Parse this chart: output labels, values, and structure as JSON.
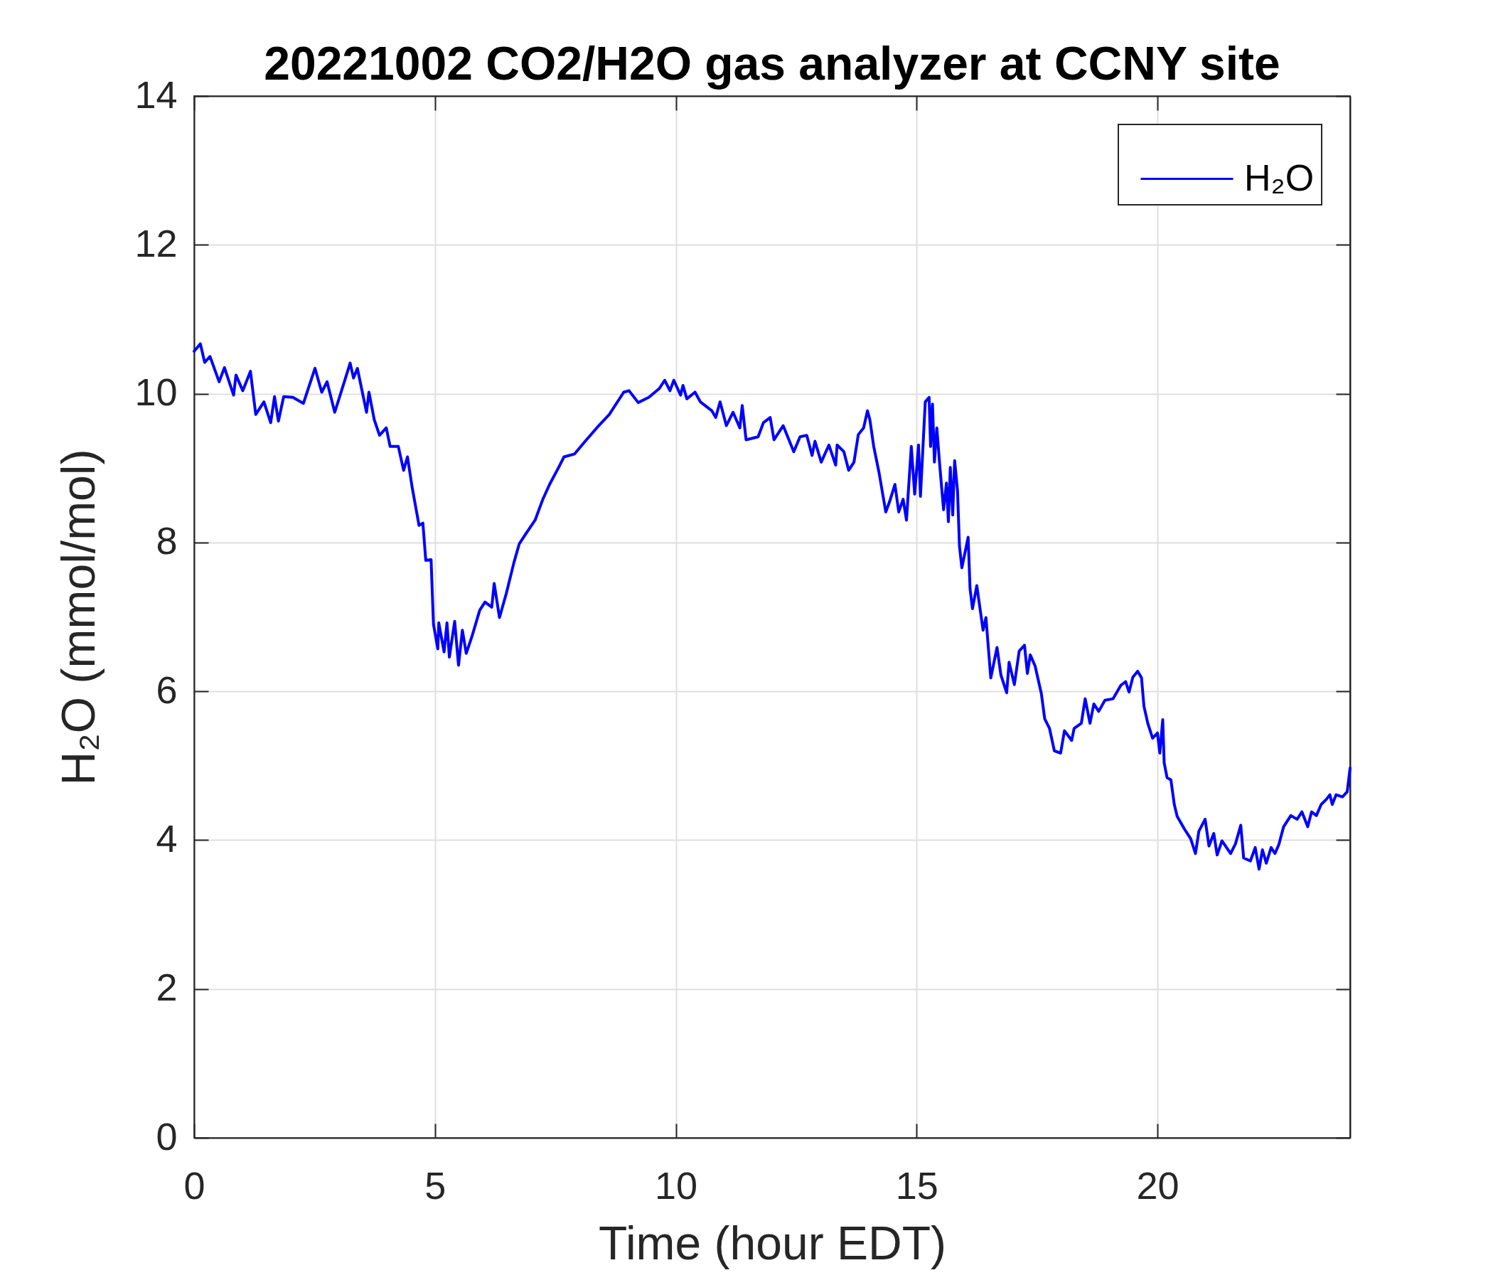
{
  "chart_data": {
    "type": "line",
    "title": "20221002 CO2/H2O gas analyzer at CCNY site",
    "xlabel": "Time (hour EDT)",
    "ylabel": "H₂O (mmol/mol)",
    "x": [
      0,
      0.13,
      0.22,
      0.33,
      0.52,
      0.63,
      0.82,
      0.87,
      1.01,
      1.17,
      1.28,
      1.45,
      1.59,
      1.67,
      1.75,
      1.86,
      2.05,
      2.27,
      2.51,
      2.65,
      2.76,
      2.92,
      3.11,
      3.24,
      3.31,
      3.39,
      3.58,
      3.63,
      3.74,
      3.85,
      3.99,
      4.07,
      4.24,
      4.35,
      4.43,
      4.53,
      4.67,
      4.75,
      4.81,
      4.92,
      4.97,
      5.06,
      5.08,
      5.19,
      5.25,
      5.3,
      5.41,
      5.49,
      5.57,
      5.65,
      5.77,
      5.93,
      6.04,
      6.18,
      6.23,
      6.34,
      6.48,
      6.64,
      6.75,
      6.89,
      7.08,
      7.24,
      7.38,
      7.57,
      7.68,
      7.9,
      8.12,
      8.36,
      8.62,
      8.92,
      9.03,
      9.22,
      9.44,
      9.66,
      9.77,
      9.88,
      9.96,
      10.1,
      10.15,
      10.23,
      10.4,
      10.51,
      10.75,
      10.83,
      10.92,
      11.05,
      11.19,
      11.33,
      11.38,
      11.46,
      11.71,
      11.82,
      11.96,
      12.04,
      12.23,
      12.45,
      12.58,
      12.72,
      12.83,
      12.89,
      13.02,
      13.18,
      13.32,
      13.35,
      13.49,
      13.59,
      13.7,
      13.79,
      13.9,
      13.98,
      14.03,
      14.11,
      14.22,
      14.36,
      14.44,
      14.55,
      14.63,
      14.72,
      14.79,
      14.89,
      14.96,
      15.04,
      15.08,
      15.18,
      15.26,
      15.29,
      15.33,
      15.37,
      15.42,
      15.48,
      15.56,
      15.62,
      15.66,
      15.7,
      15.75,
      15.79,
      15.85,
      15.89,
      15.94,
      16.07,
      16.11,
      16.16,
      16.25,
      16.38,
      16.44,
      16.54,
      16.67,
      16.75,
      16.87,
      16.92,
      17.03,
      17.13,
      17.24,
      17.3,
      17.36,
      17.46,
      17.59,
      17.66,
      17.76,
      17.86,
      17.99,
      18.07,
      18.22,
      18.27,
      18.42,
      18.5,
      18.6,
      18.68,
      18.78,
      18.91,
      19.08,
      19.24,
      19.34,
      19.41,
      19.49,
      19.59,
      19.67,
      19.72,
      19.8,
      19.9,
      20,
      20.05,
      20.11,
      20.14,
      20.2,
      20.28,
      20.35,
      20.41,
      20.56,
      20.69,
      20.79,
      20.86,
      20.99,
      21.07,
      21.17,
      21.24,
      21.34,
      21.52,
      21.62,
      21.73,
      21.79,
      21.93,
      22.03,
      22.11,
      22.18,
      22.26,
      22.36,
      22.44,
      22.52,
      22.62,
      22.77,
      22.9,
      23,
      23.12,
      23.2,
      23.3,
      23.4,
      23.51,
      23.58,
      23.63,
      23.71,
      23.84,
      23.94,
      24
    ],
    "series": [
      {
        "name": "H₂O",
        "color": "#0000ff",
        "values": [
          10.57,
          10.67,
          10.42,
          10.5,
          10.16,
          10.35,
          9.98,
          10.25,
          10.04,
          10.3,
          9.72,
          9.89,
          9.61,
          9.96,
          9.63,
          9.96,
          9.95,
          9.87,
          10.34,
          10.02,
          10.16,
          9.75,
          10.14,
          10.41,
          10.21,
          10.34,
          9.75,
          10.02,
          9.65,
          9.44,
          9.54,
          9.29,
          9.29,
          8.97,
          9.15,
          8.73,
          8.23,
          8.26,
          7.76,
          7.77,
          6.9,
          6.57,
          6.92,
          6.53,
          6.92,
          6.46,
          6.94,
          6.35,
          6.82,
          6.51,
          6.74,
          7.09,
          7.2,
          7.13,
          7.45,
          6.99,
          7.31,
          7.73,
          7.98,
          8.12,
          8.3,
          8.58,
          8.78,
          9.01,
          9.15,
          9.19,
          9.36,
          9.54,
          9.72,
          10.02,
          10.04,
          9.88,
          9.95,
          10.07,
          10.18,
          10.04,
          10.18,
          9.98,
          10.11,
          9.93,
          10.02,
          9.89,
          9.77,
          9.68,
          9.89,
          9.57,
          9.75,
          9.54,
          9.84,
          9.38,
          9.42,
          9.61,
          9.68,
          9.38,
          9.57,
          9.22,
          9.42,
          9.44,
          9.17,
          9.36,
          9.08,
          9.31,
          9.04,
          9.31,
          9.22,
          8.97,
          9.08,
          9.45,
          9.54,
          9.77,
          9.65,
          9.29,
          8.94,
          8.41,
          8.55,
          8.78,
          8.41,
          8.58,
          8.3,
          9.29,
          8.65,
          9.31,
          8.62,
          9.89,
          9.95,
          9.29,
          9.86,
          9.08,
          9.54,
          9.04,
          8.44,
          8.8,
          8.28,
          9.01,
          8.37,
          9.1,
          8.69,
          7.95,
          7.66,
          8.07,
          7.38,
          7.11,
          7.42,
          6.82,
          6.99,
          6.18,
          6.59,
          6.22,
          5.98,
          6.39,
          6.09,
          6.54,
          6.62,
          6.24,
          6.49,
          6.34,
          5.97,
          5.63,
          5.5,
          5.2,
          5.17,
          5.47,
          5.34,
          5.5,
          5.57,
          5.9,
          5.57,
          5.83,
          5.73,
          5.88,
          5.9,
          6.08,
          6.13,
          5.99,
          6.19,
          6.27,
          6.18,
          5.8,
          5.57,
          5.37,
          5.44,
          5.17,
          5.62,
          5.04,
          4.84,
          4.81,
          4.48,
          4.32,
          4.15,
          4.02,
          3.82,
          4.12,
          4.28,
          3.92,
          4.09,
          3.8,
          3.99,
          3.82,
          3.95,
          4.2,
          3.76,
          3.72,
          3.9,
          3.61,
          3.87,
          3.69,
          3.9,
          3.82,
          3.94,
          4.18,
          4.33,
          4.28,
          4.38,
          4.18,
          4.38,
          4.33,
          4.48,
          4.55,
          4.61,
          4.48,
          4.61,
          4.58,
          4.65,
          4.97
        ]
      }
    ],
    "xlim": [
      0,
      24
    ],
    "xticks": [
      0,
      5,
      10,
      15,
      20
    ],
    "ylim": [
      0,
      14
    ],
    "yticks": [
      0,
      2,
      4,
      6,
      8,
      10,
      12,
      14
    ],
    "grid": true,
    "legend": "top right"
  }
}
